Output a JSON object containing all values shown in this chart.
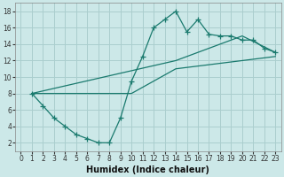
{
  "xlabel": "Humidex (Indice chaleur)",
  "bg_color": "#cce8e8",
  "grid_color": "#aacece",
  "line_color": "#1a7a6e",
  "xlim": [
    -0.5,
    23.5
  ],
  "ylim": [
    1,
    19
  ],
  "xticks": [
    0,
    1,
    2,
    3,
    4,
    5,
    6,
    7,
    8,
    9,
    10,
    11,
    12,
    13,
    14,
    15,
    16,
    17,
    18,
    19,
    20,
    21,
    22,
    23
  ],
  "yticks": [
    2,
    4,
    6,
    8,
    10,
    12,
    14,
    16,
    18
  ],
  "main_x": [
    1,
    2,
    3,
    4,
    5,
    6,
    7,
    8,
    9,
    10,
    11,
    12,
    13,
    14,
    15,
    16,
    17,
    18,
    19,
    20,
    21,
    22,
    23
  ],
  "main_y": [
    8,
    6.5,
    5,
    4,
    3,
    2.5,
    2,
    2,
    5,
    9.5,
    12.5,
    16,
    17,
    18,
    15.5,
    17,
    15.2,
    15,
    15,
    14.5,
    14.5,
    13.5,
    13
  ],
  "line1_x": [
    1,
    14,
    20,
    23
  ],
  "line1_y": [
    8,
    12,
    15,
    13
  ],
  "line2_x": [
    1,
    10,
    14,
    23
  ],
  "line2_y": [
    8,
    8,
    11,
    12.5
  ]
}
